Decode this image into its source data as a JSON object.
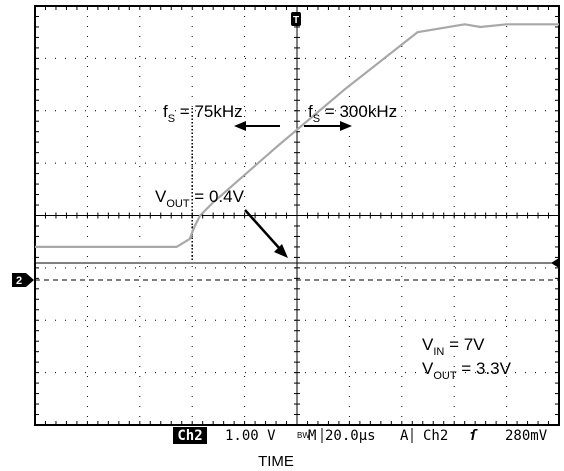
{
  "chart_data": {
    "type": "line",
    "xlabel": "TIME",
    "ylabel": "",
    "grid": true,
    "xlim": [
      -5,
      5
    ],
    "ylim": [
      -3.4,
      4.6
    ],
    "x_units": "divisions (20.0µs/div)",
    "y_units": "V (1.00 V/div)",
    "series": [
      {
        "x": [
          -5,
          -2.3,
          -2.05,
          -1.95,
          -1.85,
          -1.6,
          -0.4,
          0.9,
          2.3,
          3.2,
          3.5,
          4.0,
          5.0
        ],
        "values": [
          0,
          0,
          0.15,
          0.4,
          0.6,
          0.85,
          1.9,
          3.0,
          4.1,
          4.25,
          4.2,
          4.25,
          4.25
        ]
      }
    ],
    "annotations": {
      "fs_left": {
        "f": "f",
        "sub": "S",
        "rest": " = 75kHz"
      },
      "fs_right": {
        "f": "f",
        "sub": "S",
        "rest": " = 300kHz"
      },
      "vout_threshold": {
        "v": "V",
        "sub": "OUT",
        "rest": " = 0.4V"
      },
      "vin": {
        "v": "V",
        "sub": "IN",
        "rest": " = 7V"
      },
      "vout": {
        "v": "V",
        "sub": "OUT",
        "rest": " = 3.3V"
      },
      "transition_x": -2.0
    },
    "channel_marker": "2",
    "trigger_marker": "T"
  },
  "status_bar": {
    "channel": "Ch2",
    "scale": "1.00 V",
    "bw_mark": "BW",
    "mode": "M",
    "timebase": "20.0µs",
    "trigger_mode": "A",
    "trigger_source": "Ch2",
    "trigger_slope": "ſ",
    "trigger_level": "280mV"
  },
  "colors": {
    "trace": "#a8a8a8",
    "frame": "#000000",
    "grid": "#000000",
    "level_line": "#000000"
  }
}
